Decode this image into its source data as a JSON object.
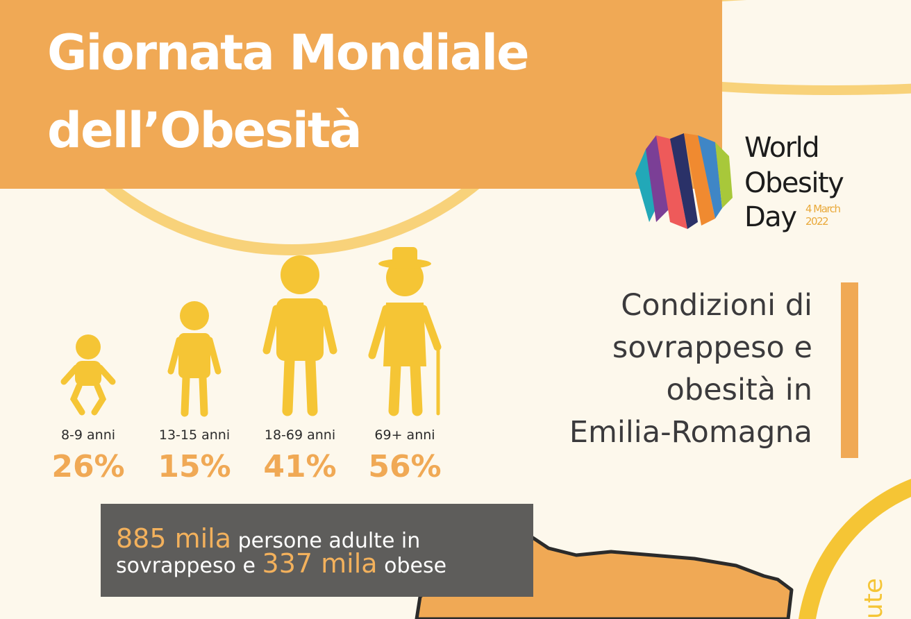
{
  "header": {
    "title_lines": [
      "Giornata Mondiale",
      "dell’Obesità"
    ]
  },
  "logo": {
    "lines": [
      "World",
      "Obesity",
      "Day"
    ],
    "date_lines": [
      "4 March",
      "2022"
    ]
  },
  "subtitle_lines": [
    "Condizioni di",
    "sovrappeso e",
    "obesità in",
    "Emilia-Romagna"
  ],
  "age_groups": [
    {
      "label": "8-9 anni",
      "value": "26%"
    },
    {
      "label": "13-15 anni",
      "value": "15%"
    },
    {
      "label": "18-69 anni",
      "value": "41%"
    },
    {
      "label": "69+ anni",
      "value": "56%"
    }
  ],
  "stat_box": {
    "highlight_1": "885 mila",
    "text_1": "persone adulte in",
    "text_2": "sovrappeso e",
    "highlight_2": "337 mila",
    "text_3": "obese"
  },
  "side_text": "ute"
}
